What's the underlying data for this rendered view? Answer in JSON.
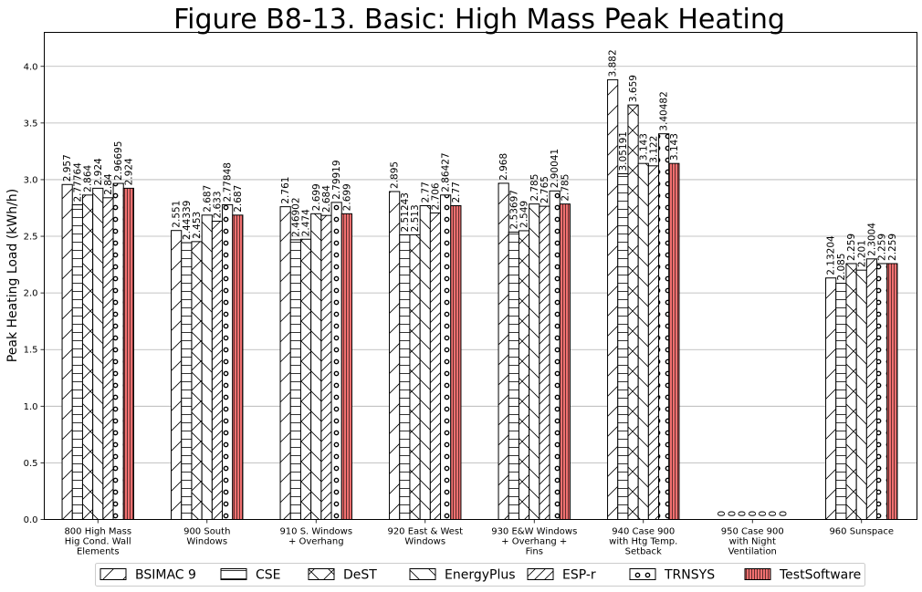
{
  "chart_data": {
    "type": "bar",
    "title": "Figure B8-13.  Basic: High Mass Peak Heating",
    "xlabel": "",
    "ylabel": "Peak Heating Load (kWh/h)",
    "ylim": [
      0,
      4.3
    ],
    "yticks": [
      "0.0",
      "0.5",
      "1.0",
      "1.5",
      "2.0",
      "2.5",
      "3.0",
      "3.5",
      "4.0"
    ],
    "grid": true,
    "legend_position": "bottom",
    "categories": [
      [
        "800 High Mass",
        "Hig Cond. Wall",
        "Elements"
      ],
      [
        "900 South",
        "Windows"
      ],
      [
        "910 S. Windows",
        "+ Overhang"
      ],
      [
        "920 East & West",
        "Windows"
      ],
      [
        "930 E&W Windows",
        "+ Overhang +",
        "Fins"
      ],
      [
        "940 Case 900",
        "with Htg Temp.",
        "Setback"
      ],
      [
        "950 Case 900",
        "with Night",
        "Ventilation"
      ],
      [
        "960 Sunspace"
      ]
    ],
    "series": [
      {
        "name": "BSIMAC 9",
        "pattern": "slash-wide",
        "values": [
          2.957,
          2.551,
          2.761,
          2.895,
          2.968,
          3.882,
          0,
          2.13204
        ],
        "labels": [
          "2.957",
          "2.551",
          "2.761",
          "2.895",
          "2.968",
          "3.882",
          "0",
          "2.13204"
        ]
      },
      {
        "name": "CSE",
        "pattern": "horizontal",
        "values": [
          2.77764,
          2.44339,
          2.46902,
          2.51243,
          2.53697,
          3.05191,
          0,
          2.085
        ],
        "labels": [
          "2.77764",
          "2.44339",
          "2.46902",
          "2.51243",
          "2.53697",
          "3.05191",
          "0",
          "2.085"
        ]
      },
      {
        "name": "DeST",
        "pattern": "cross",
        "values": [
          2.864,
          2.453,
          2.474,
          2.513,
          2.549,
          3.659,
          0,
          2.259
        ],
        "labels": [
          "2.864",
          "2.453",
          "2.474",
          "2.513",
          "2.549",
          "3.659",
          "0",
          "2.259"
        ]
      },
      {
        "name": "EnergyPlus",
        "pattern": "backslash",
        "values": [
          2.924,
          2.687,
          2.699,
          2.77,
          2.785,
          3.143,
          0,
          2.201
        ],
        "labels": [
          "2.924",
          "2.687",
          "2.699",
          "2.77",
          "2.785",
          "3.143",
          "0",
          "2.201"
        ]
      },
      {
        "name": "ESP-r",
        "pattern": "slash-dense",
        "values": [
          2.84,
          2.633,
          2.684,
          2.706,
          2.765,
          3.122,
          0,
          2.3004
        ],
        "labels": [
          "2.84",
          "2.633",
          "2.684",
          "2.706",
          "2.765",
          "3.122",
          "0",
          "2.3004"
        ]
      },
      {
        "name": "TRNSYS",
        "pattern": "circles",
        "values": [
          2.96695,
          2.77848,
          2.79919,
          2.86427,
          2.90041,
          3.40482,
          0,
          2.259
        ],
        "labels": [
          "2.96695",
          "2.77848",
          "2.79919",
          "2.86427",
          "2.90041",
          "3.40482",
          "0",
          "2.259"
        ]
      },
      {
        "name": "TestSoftware",
        "pattern": "vertical",
        "color": "#f07070",
        "values": [
          2.924,
          2.687,
          2.699,
          2.77,
          2.785,
          3.143,
          0,
          2.259
        ],
        "labels": [
          "2.924",
          "2.687",
          "2.699",
          "2.77",
          "2.785",
          "3.143",
          "0",
          "2.259"
        ]
      }
    ]
  }
}
